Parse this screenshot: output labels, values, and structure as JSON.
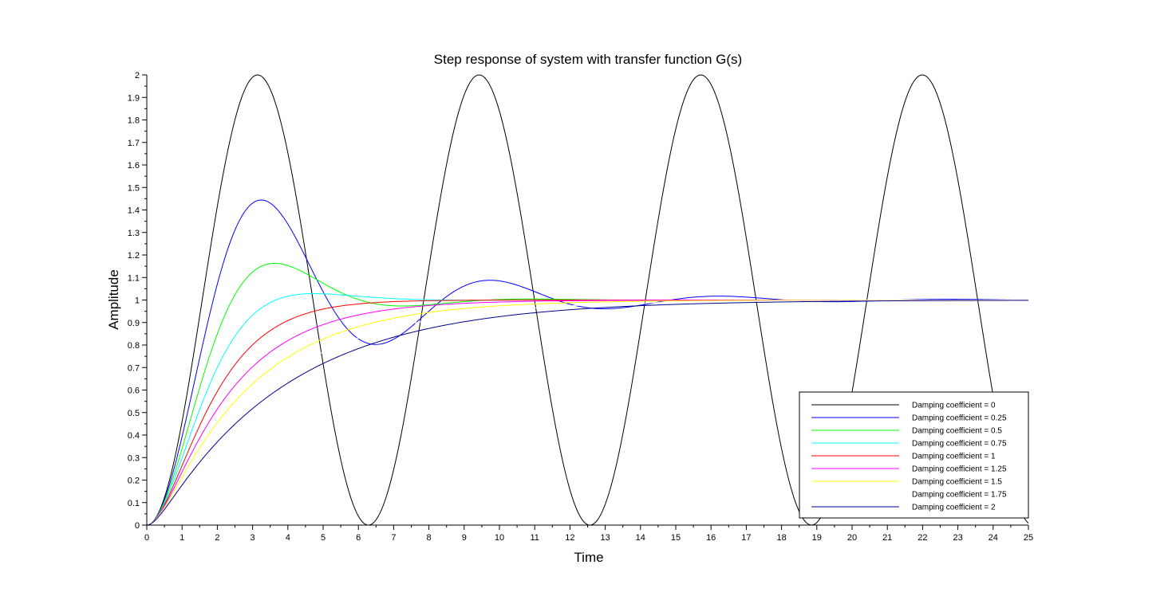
{
  "chart_data": {
    "type": "line",
    "title": "Step response of system with transfer function G(s)",
    "xlabel": "Time",
    "ylabel": "Amplitude",
    "xlim": [
      0,
      25
    ],
    "ylim": [
      0,
      2
    ],
    "x_ticks": [
      "0",
      "1",
      "2",
      "3",
      "4",
      "5",
      "6",
      "7",
      "8",
      "9",
      "10",
      "11",
      "12",
      "13",
      "14",
      "15",
      "16",
      "17",
      "18",
      "19",
      "20",
      "21",
      "22",
      "23",
      "24",
      "25"
    ],
    "y_ticks": [
      "0",
      "0.1",
      "0.2",
      "0.3",
      "0.4",
      "0.5",
      "0.6",
      "0.7",
      "0.8",
      "0.9",
      "1",
      "1.1",
      "1.2",
      "1.3",
      "1.4",
      "1.5",
      "1.6",
      "1.7",
      "1.8",
      "1.9",
      "2"
    ],
    "grid": false,
    "legend_position": "bottom-right",
    "model": "second-order step response, natural frequency 1 rad/s",
    "sample_step": 0.05,
    "series": [
      {
        "name": "Damping coefficient = 0",
        "zeta": 0,
        "color": "#000000"
      },
      {
        "name": "Damping coefficient = 0.25",
        "zeta": 0.25,
        "color": "#0000ff"
      },
      {
        "name": "Damping coefficient = 0.5",
        "zeta": 0.5,
        "color": "#00ff00"
      },
      {
        "name": "Damping coefficient = 0.75",
        "zeta": 0.75,
        "color": "#00ffff"
      },
      {
        "name": "Damping coefficient = 1",
        "zeta": 1,
        "color": "#ff0000"
      },
      {
        "name": "Damping coefficient = 1.25",
        "zeta": 1.25,
        "color": "#ff00ff"
      },
      {
        "name": "Damping coefficient = 1.5",
        "zeta": 1.5,
        "color": "#ffff00"
      },
      {
        "name": "Damping coefficient = 1.75",
        "zeta": 1.75,
        "color": "#ffffff"
      },
      {
        "name": "Damping coefficient = 2",
        "zeta": 2,
        "color": "#00008b"
      }
    ]
  }
}
